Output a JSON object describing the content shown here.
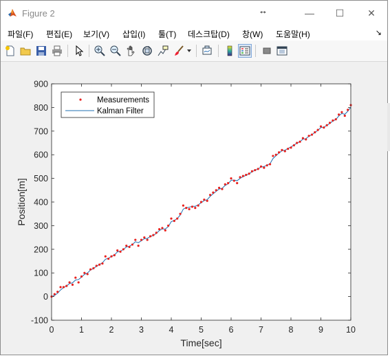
{
  "window": {
    "title": "Figure 2",
    "minimize_glyph": "—",
    "maximize_glyph": "☐",
    "close_glyph": "✕",
    "resize_cursor_glyph": "↔"
  },
  "menu": {
    "items": [
      "파일(F)",
      "편집(E)",
      "보기(V)",
      "삽입(I)",
      "툴(T)",
      "데스크탑(D)",
      "창(W)",
      "도움말(H)"
    ],
    "overflow_glyph": "↘"
  },
  "toolbar": {
    "icons": [
      "new-figure-icon",
      "open-file-icon",
      "save-icon",
      "print-icon",
      "edit-plot-arrow-icon",
      "zoom-in-icon",
      "zoom-out-icon",
      "pan-hand-icon",
      "rotate-3d-icon",
      "data-cursor-icon",
      "brush-icon",
      "brush-dropdown-icon",
      "link-plot-icon",
      "insert-colorbar-icon",
      "insert-legend-icon",
      "hide-plot-tools-icon",
      "show-plot-tools-icon"
    ],
    "active": "insert-legend-icon"
  },
  "colors": {
    "measurement": "#e8221f",
    "kalman": "#1f6fb2",
    "axes_bg": "#ffffff",
    "figure_bg": "#f0f0f0"
  },
  "chart_data": {
    "type": "scatter",
    "xlabel": "Time[sec]",
    "ylabel": "Position[m]",
    "xlim": [
      0,
      10
    ],
    "ylim": [
      -100,
      900
    ],
    "xticks": [
      0,
      1,
      2,
      3,
      4,
      5,
      6,
      7,
      8,
      9,
      10
    ],
    "yticks": [
      -100,
      0,
      100,
      200,
      300,
      400,
      500,
      600,
      700,
      800,
      900
    ],
    "grid": false,
    "legend": {
      "position": "top-left",
      "entries": [
        "Measurements",
        "Kalman Filter"
      ]
    },
    "series": [
      {
        "name": "Measurements",
        "style": "markers",
        "x": [
          0.0,
          0.1,
          0.2,
          0.3,
          0.4,
          0.5,
          0.6,
          0.7,
          0.8,
          0.9,
          1.0,
          1.1,
          1.2,
          1.3,
          1.4,
          1.5,
          1.6,
          1.7,
          1.8,
          1.9,
          2.0,
          2.1,
          2.2,
          2.3,
          2.4,
          2.5,
          2.6,
          2.7,
          2.8,
          2.9,
          3.0,
          3.1,
          3.2,
          3.3,
          3.4,
          3.5,
          3.6,
          3.7,
          3.8,
          3.9,
          4.0,
          4.1,
          4.2,
          4.3,
          4.4,
          4.5,
          4.6,
          4.7,
          4.8,
          4.9,
          5.0,
          5.1,
          5.2,
          5.3,
          5.4,
          5.5,
          5.6,
          5.7,
          5.8,
          5.9,
          6.0,
          6.1,
          6.2,
          6.3,
          6.4,
          6.5,
          6.6,
          6.7,
          6.8,
          6.9,
          7.0,
          7.1,
          7.2,
          7.3,
          7.4,
          7.5,
          7.6,
          7.7,
          7.8,
          7.9,
          8.0,
          8.1,
          8.2,
          8.3,
          8.4,
          8.5,
          8.6,
          8.7,
          8.8,
          8.9,
          9.0,
          9.1,
          9.2,
          9.3,
          9.4,
          9.5,
          9.6,
          9.7,
          9.8,
          9.9,
          10.0
        ],
        "y": [
          0,
          10,
          20,
          40,
          40,
          45,
          60,
          50,
          80,
          60,
          85,
          100,
          95,
          115,
          120,
          130,
          135,
          140,
          170,
          160,
          170,
          175,
          195,
          190,
          200,
          215,
          210,
          220,
          240,
          215,
          240,
          250,
          240,
          255,
          260,
          270,
          285,
          290,
          280,
          300,
          330,
          320,
          330,
          350,
          385,
          375,
          370,
          380,
          375,
          385,
          400,
          410,
          405,
          430,
          440,
          450,
          460,
          455,
          475,
          480,
          500,
          490,
          480,
          505,
          510,
          515,
          520,
          530,
          535,
          540,
          550,
          545,
          555,
          560,
          595,
          600,
          610,
          620,
          615,
          625,
          630,
          640,
          650,
          655,
          670,
          665,
          680,
          685,
          695,
          705,
          720,
          715,
          725,
          735,
          745,
          750,
          770,
          780,
          765,
          790,
          810
        ]
      },
      {
        "name": "Kalman Filter",
        "style": "line",
        "x": [
          0.0,
          0.1,
          0.2,
          0.3,
          0.4,
          0.5,
          0.6,
          0.7,
          0.8,
          0.9,
          1.0,
          1.1,
          1.2,
          1.3,
          1.4,
          1.5,
          1.6,
          1.7,
          1.8,
          1.9,
          2.0,
          2.1,
          2.2,
          2.3,
          2.4,
          2.5,
          2.6,
          2.7,
          2.8,
          2.9,
          3.0,
          3.1,
          3.2,
          3.3,
          3.4,
          3.5,
          3.6,
          3.7,
          3.8,
          3.9,
          4.0,
          4.1,
          4.2,
          4.3,
          4.4,
          4.5,
          4.6,
          4.7,
          4.8,
          4.9,
          5.0,
          5.1,
          5.2,
          5.3,
          5.4,
          5.5,
          5.6,
          5.7,
          5.8,
          5.9,
          6.0,
          6.1,
          6.2,
          6.3,
          6.4,
          6.5,
          6.6,
          6.7,
          6.8,
          6.9,
          7.0,
          7.1,
          7.2,
          7.3,
          7.4,
          7.5,
          7.6,
          7.7,
          7.8,
          7.9,
          8.0,
          8.1,
          8.2,
          8.3,
          8.4,
          8.5,
          8.6,
          8.7,
          8.8,
          8.9,
          9.0,
          9.1,
          9.2,
          9.3,
          9.4,
          9.5,
          9.6,
          9.7,
          9.8,
          9.9,
          10.0
        ],
        "y": [
          0,
          5,
          14,
          28,
          38,
          45,
          55,
          58,
          70,
          72,
          82,
          94,
          100,
          112,
          119,
          128,
          136,
          143,
          158,
          162,
          170,
          176,
          189,
          192,
          199,
          210,
          213,
          220,
          232,
          228,
          236,
          245,
          246,
          254,
          259,
          267,
          279,
          286,
          286,
          296,
          317,
          322,
          330,
          345,
          370,
          376,
          378,
          382,
          382,
          388,
          397,
          406,
          410,
          424,
          435,
          445,
          455,
          458,
          470,
          477,
          492,
          493,
          490,
          500,
          507,
          513,
          519,
          528,
          534,
          540,
          548,
          550,
          556,
          562,
          584,
          596,
          607,
          617,
          619,
          627,
          633,
          641,
          649,
          655,
          666,
          668,
          678,
          685,
          694,
          703,
          715,
          717,
          724,
          733,
          742,
          749,
          764,
          775,
          771,
          784,
          801
        ]
      }
    ]
  }
}
